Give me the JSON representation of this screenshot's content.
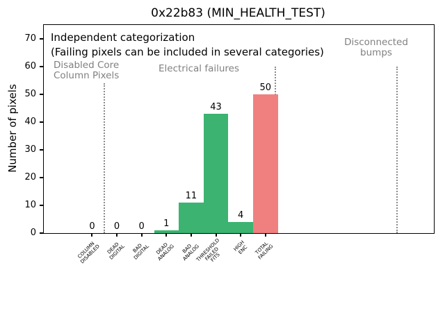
{
  "chart_data": {
    "type": "bar",
    "title": "0x22b83 (MIN_HEALTH_TEST)",
    "xlabel": "",
    "ylabel": "Number of pixels",
    "categories": [
      "COLUMN\nDISABLED",
      "DEAD\nDIGITAL",
      "BAD\nDIGITAL",
      "DEAD\nANALOG",
      "BAD\nANALOG",
      "THRESHOLD\nFAILED\nFITS",
      "HIGH\nENC",
      "TOTAL\nFAILING"
    ],
    "values": [
      0,
      0,
      0,
      1,
      11,
      43,
      4,
      50
    ],
    "bar_colors": [
      "#3cb371",
      "#3cb371",
      "#3cb371",
      "#3cb371",
      "#3cb371",
      "#3cb371",
      "#3cb371",
      "#f08080"
    ],
    "value_labels": [
      "0",
      "0",
      "0",
      "1",
      "11",
      "43",
      "4",
      "50"
    ],
    "ylim": [
      0,
      75
    ],
    "xlim": [
      -1.95,
      13.8
    ],
    "yticks": [
      0,
      10,
      20,
      30,
      40,
      50,
      60,
      70
    ],
    "grid": false,
    "legend": null,
    "bar_width": 1.0,
    "annotations": [
      {
        "id": "independent",
        "text": "Independent categorization",
        "color": "#000000"
      },
      {
        "id": "failing-note",
        "text": "(Failing pixels can be included in several categories)",
        "color": "#000000"
      },
      {
        "id": "disabled-core",
        "text": "Disabled Core\nColumn Pixels",
        "color": "#808080"
      },
      {
        "id": "electrical",
        "text": "Electrical failures",
        "color": "#808080"
      },
      {
        "id": "disconnected",
        "text": "Disconnected\nbumps",
        "color": "#808080"
      }
    ],
    "separators": [
      {
        "x": 0.5,
        "top": 54
      },
      {
        "x": 7.4,
        "top": 60
      },
      {
        "x": 12.3,
        "top": 60
      }
    ],
    "colors": {
      "pass_bar": "#3cb371",
      "fail_bar": "#f08080",
      "separator": "#8a8a8a",
      "annotation_gray": "#808080"
    }
  }
}
